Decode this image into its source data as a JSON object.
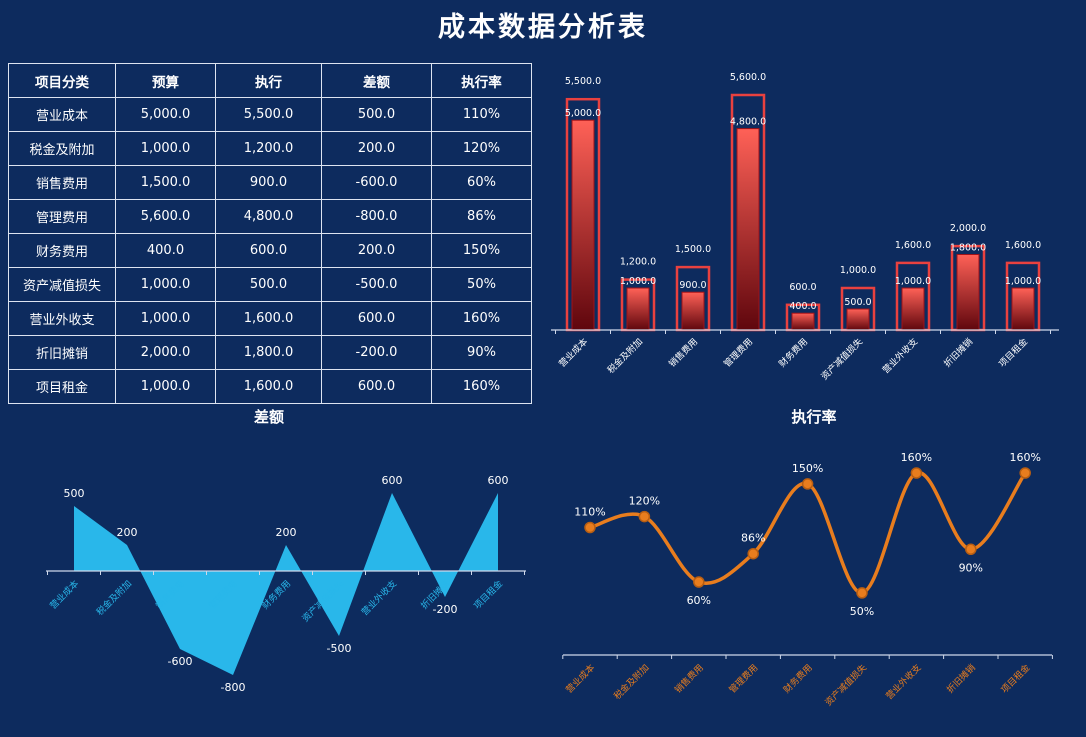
{
  "title": "成本数据分析表",
  "colors": {
    "background": "#0d2b5e",
    "table_border": "#dde4f0",
    "bar_fill_top": "#ff6157",
    "bar_fill_bottom": "#5f060d",
    "bar_outline": "#e8413f",
    "bar_inner_stroke": "#a01218",
    "area": "#29b7ea",
    "line": "#e87d1e",
    "line_marker_stroke": "#b85e12",
    "axis": "#cfd8ea",
    "text": "#ffffff"
  },
  "table": {
    "headers": [
      "项目分类",
      "预算",
      "执行",
      "差额",
      "执行率"
    ],
    "rows": [
      [
        "营业成本",
        "5,000.0",
        "5,500.0",
        "500.0",
        "110%"
      ],
      [
        "税金及附加",
        "1,000.0",
        "1,200.0",
        "200.0",
        "120%"
      ],
      [
        "销售费用",
        "1,500.0",
        "900.0",
        "-600.0",
        "60%"
      ],
      [
        "管理费用",
        "5,600.0",
        "4,800.0",
        "-800.0",
        "86%"
      ],
      [
        "财务费用",
        "400.0",
        "600.0",
        "200.0",
        "150%"
      ],
      [
        "资产减值损失",
        "1,000.0",
        "500.0",
        "-500.0",
        "50%"
      ],
      [
        "营业外收支",
        "1,000.0",
        "1,600.0",
        "600.0",
        "160%"
      ],
      [
        "折旧摊销",
        "2,000.0",
        "1,800.0",
        "-200.0",
        "90%"
      ],
      [
        "项目租金",
        "1,000.0",
        "1,600.0",
        "600.0",
        "160%"
      ]
    ]
  },
  "chart_data": [
    {
      "type": "bar",
      "title": "",
      "categories": [
        "营业成本",
        "税金及附加",
        "销售费用",
        "管理费用",
        "财务费用",
        "资产减值损失",
        "营业外收支",
        "折旧摊销",
        "项目租金"
      ],
      "series": [
        {
          "name": "预算",
          "values": [
            5000,
            1000,
            1500,
            5600,
            400,
            1000,
            1000,
            2000,
            1000
          ]
        },
        {
          "name": "执行",
          "values": [
            5500,
            1200,
            900,
            4800,
            600,
            500,
            1600,
            1800,
            1600
          ]
        }
      ],
      "ylim": [
        0,
        5600
      ],
      "grid": false,
      "legend": "none"
    },
    {
      "type": "area",
      "title": "差额",
      "categories": [
        "营业成本",
        "税金及附加",
        "销售费用",
        "管理费用",
        "财务费用",
        "资产减值损失",
        "营业外收支",
        "折旧摊销",
        "项目租金"
      ],
      "values": [
        500,
        200,
        -600,
        -800,
        200,
        -500,
        600,
        -200,
        600
      ],
      "ylim": [
        -800,
        600
      ],
      "grid": false,
      "legend": "none"
    },
    {
      "type": "line",
      "title": "执行率",
      "categories": [
        "营业成本",
        "税金及附加",
        "销售费用",
        "管理费用",
        "财务费用",
        "资产减值损失",
        "营业外收支",
        "折旧摊销",
        "项目租金"
      ],
      "values": [
        110,
        120,
        60,
        86,
        150,
        50,
        160,
        90,
        160
      ],
      "labels": [
        "110%",
        "120%",
        "60%",
        "86%",
        "150%",
        "50%",
        "160%",
        "90%",
        "160%"
      ],
      "ylim": [
        0,
        160
      ],
      "grid": false,
      "legend": "none"
    }
  ]
}
